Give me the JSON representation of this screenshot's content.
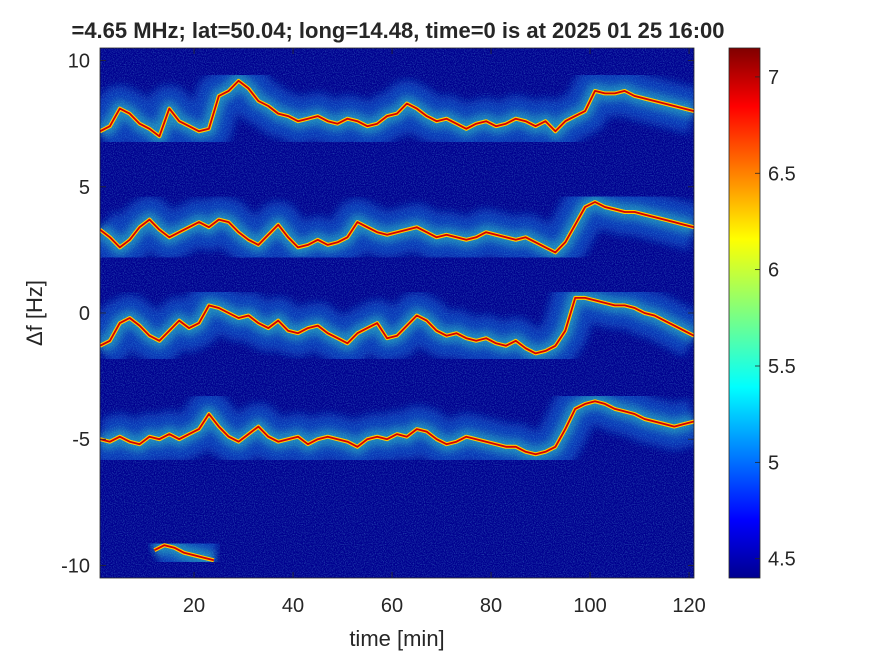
{
  "chart_data": {
    "type": "heatmap",
    "title": "=4.65 MHz;  lat=50.04; long=14.48, time=0 is at 2025 01 25 16:00",
    "xlabel": "time [min]",
    "ylabel": "Δf [Hz]",
    "xlim": [
      1,
      121
    ],
    "ylim": [
      -10.5,
      10.5
    ],
    "x_ticks": [
      20,
      40,
      60,
      80,
      100,
      120
    ],
    "y_ticks": [
      -10,
      -5,
      0,
      5,
      10
    ],
    "colorbar": {
      "clim": [
        4.4,
        7.15
      ],
      "ticks": [
        4.5,
        5,
        5.5,
        6,
        6.5,
        7
      ],
      "colormap": "jet"
    },
    "background_value": 4.45,
    "traces": [
      {
        "x": [
          1,
          3,
          5,
          7,
          9,
          11,
          13,
          15,
          17,
          19,
          21,
          23,
          25,
          27,
          29,
          31,
          33,
          35,
          37,
          39,
          41,
          43,
          45,
          47,
          49,
          51,
          53,
          55,
          57,
          59,
          61,
          63,
          65,
          67,
          69,
          71,
          73,
          75,
          77,
          79,
          81,
          83,
          85,
          87,
          89,
          91,
          93,
          95,
          97,
          99,
          101,
          103,
          105,
          107,
          109,
          111,
          113,
          115,
          117,
          119,
          121
        ],
        "y": [
          7.2,
          7.4,
          8.1,
          7.9,
          7.5,
          7.3,
          7.0,
          8.1,
          7.6,
          7.4,
          7.2,
          7.3,
          8.6,
          8.8,
          9.2,
          8.9,
          8.4,
          8.2,
          7.9,
          7.8,
          7.6,
          7.7,
          7.8,
          7.6,
          7.5,
          7.7,
          7.6,
          7.4,
          7.5,
          7.8,
          7.9,
          8.3,
          8.1,
          7.8,
          7.6,
          7.7,
          7.5,
          7.3,
          7.5,
          7.6,
          7.4,
          7.5,
          7.7,
          7.6,
          7.4,
          7.6,
          7.2,
          7.6,
          7.8,
          8.0,
          8.8,
          8.7,
          8.7,
          8.8,
          8.6,
          8.5,
          8.4,
          8.3,
          8.2,
          8.1,
          8.0
        ]
      },
      {
        "x": [
          1,
          3,
          5,
          7,
          9,
          11,
          13,
          15,
          17,
          19,
          21,
          23,
          25,
          27,
          29,
          31,
          33,
          35,
          37,
          39,
          41,
          43,
          45,
          47,
          49,
          51,
          53,
          55,
          57,
          59,
          61,
          63,
          65,
          67,
          69,
          71,
          73,
          75,
          77,
          79,
          81,
          83,
          85,
          87,
          89,
          91,
          93,
          95,
          97,
          99,
          101,
          103,
          105,
          107,
          109,
          111,
          113,
          115,
          117,
          119,
          121
        ],
        "y": [
          3.3,
          3.0,
          2.6,
          2.9,
          3.4,
          3.7,
          3.3,
          3.0,
          3.2,
          3.4,
          3.6,
          3.4,
          3.7,
          3.6,
          3.2,
          2.9,
          2.7,
          3.1,
          3.5,
          3.0,
          2.6,
          2.7,
          2.9,
          2.7,
          2.8,
          3.0,
          3.6,
          3.4,
          3.2,
          3.1,
          3.2,
          3.3,
          3.4,
          3.2,
          3.0,
          3.1,
          3.0,
          2.9,
          3.0,
          3.2,
          3.1,
          3.0,
          2.9,
          3.0,
          2.8,
          2.6,
          2.4,
          2.8,
          3.5,
          4.2,
          4.4,
          4.2,
          4.1,
          4.0,
          4.0,
          3.9,
          3.8,
          3.7,
          3.6,
          3.5,
          3.4
        ]
      },
      {
        "x": [
          1,
          3,
          5,
          7,
          9,
          11,
          13,
          15,
          17,
          19,
          21,
          23,
          25,
          27,
          29,
          31,
          33,
          35,
          37,
          39,
          41,
          43,
          45,
          47,
          49,
          51,
          53,
          55,
          57,
          59,
          61,
          63,
          65,
          67,
          69,
          71,
          73,
          75,
          77,
          79,
          81,
          83,
          85,
          87,
          89,
          91,
          93,
          95,
          97,
          99,
          101,
          103,
          105,
          107,
          109,
          111,
          113,
          115,
          117,
          119,
          121
        ],
        "y": [
          -1.3,
          -1.1,
          -0.4,
          -0.2,
          -0.5,
          -0.9,
          -1.1,
          -0.7,
          -0.3,
          -0.6,
          -0.4,
          0.3,
          0.2,
          0.0,
          -0.2,
          -0.1,
          -0.4,
          -0.6,
          -0.3,
          -0.7,
          -0.8,
          -0.6,
          -0.5,
          -0.8,
          -1.0,
          -1.2,
          -0.8,
          -0.6,
          -0.4,
          -1.0,
          -0.9,
          -0.5,
          -0.1,
          -0.3,
          -0.7,
          -0.9,
          -0.8,
          -1.0,
          -1.1,
          -1.0,
          -1.2,
          -1.3,
          -1.1,
          -1.4,
          -1.6,
          -1.5,
          -1.3,
          -0.7,
          0.6,
          0.6,
          0.5,
          0.4,
          0.3,
          0.3,
          0.2,
          0.0,
          -0.1,
          -0.3,
          -0.5,
          -0.7,
          -0.9
        ]
      },
      {
        "x": [
          1,
          3,
          5,
          7,
          9,
          11,
          13,
          15,
          17,
          19,
          21,
          23,
          25,
          27,
          29,
          31,
          33,
          35,
          37,
          39,
          41,
          43,
          45,
          47,
          49,
          51,
          53,
          55,
          57,
          59,
          61,
          63,
          65,
          67,
          69,
          71,
          73,
          75,
          77,
          79,
          81,
          83,
          85,
          87,
          89,
          91,
          93,
          95,
          97,
          99,
          101,
          103,
          105,
          107,
          109,
          111,
          113,
          115,
          117,
          119,
          121
        ],
        "y": [
          -5.0,
          -5.1,
          -4.9,
          -5.1,
          -5.2,
          -4.9,
          -5.0,
          -4.8,
          -5.0,
          -4.8,
          -4.6,
          -4.0,
          -4.5,
          -4.9,
          -5.1,
          -4.8,
          -4.5,
          -4.9,
          -5.1,
          -5.0,
          -4.9,
          -5.2,
          -5.0,
          -4.9,
          -5.0,
          -5.1,
          -5.3,
          -5.0,
          -4.9,
          -5.0,
          -4.8,
          -4.9,
          -4.6,
          -4.7,
          -5.0,
          -5.2,
          -5.1,
          -4.9,
          -5.0,
          -5.1,
          -5.2,
          -5.3,
          -5.3,
          -5.5,
          -5.6,
          -5.5,
          -5.3,
          -4.6,
          -3.8,
          -3.6,
          -3.5,
          -3.6,
          -3.8,
          -3.9,
          -4.0,
          -4.2,
          -4.3,
          -4.4,
          -4.5,
          -4.4,
          -4.3
        ]
      },
      {
        "x": [
          12,
          14,
          16,
          18,
          20,
          22,
          24
        ],
        "y": [
          -9.4,
          -9.2,
          -9.3,
          -9.5,
          -9.6,
          -9.7,
          -9.8
        ]
      }
    ]
  }
}
